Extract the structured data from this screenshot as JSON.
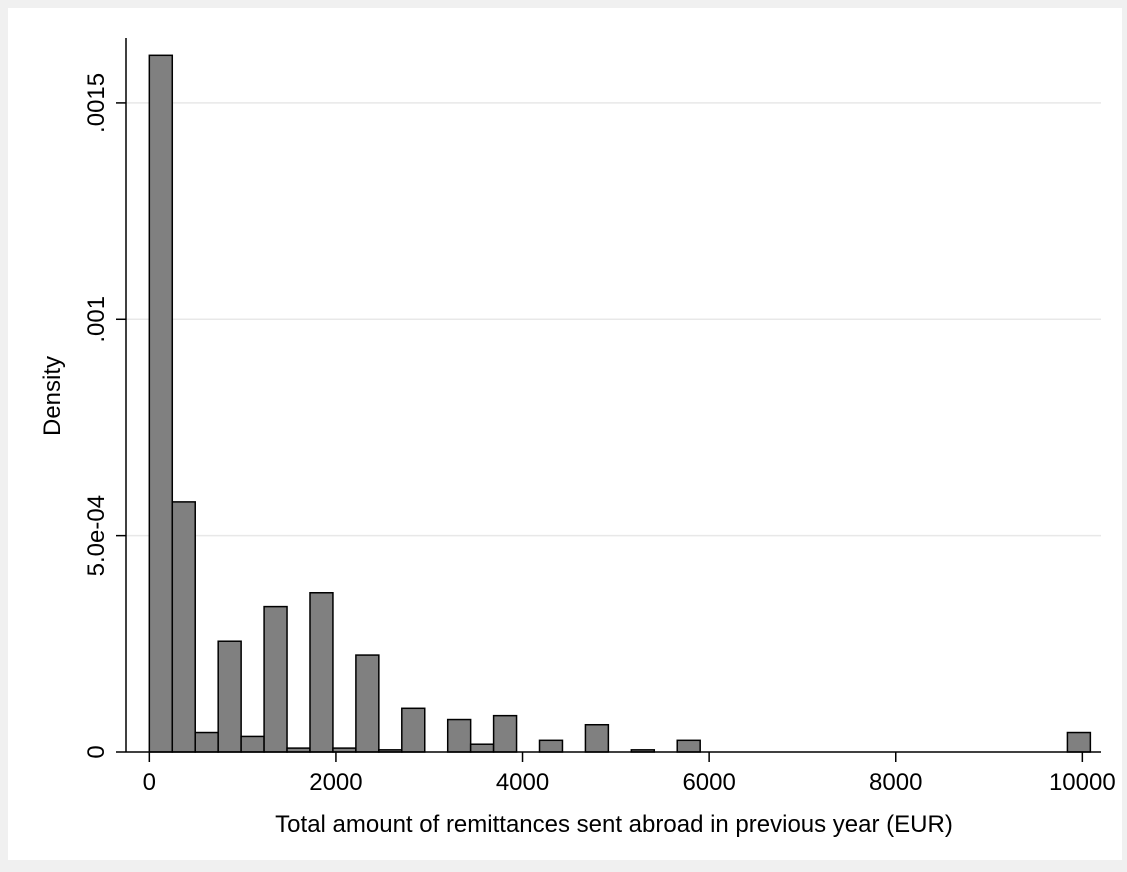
{
  "chart_data": {
    "type": "bar",
    "subtype": "histogram",
    "xlabel": "Total amount of remittances sent abroad in previous year (EUR)",
    "ylabel": "Density",
    "xlim": [
      -250,
      10200
    ],
    "ylim": [
      0,
      0.00165
    ],
    "xticks": [
      {
        "value": 0,
        "label": "0"
      },
      {
        "value": 2000,
        "label": "2000"
      },
      {
        "value": 4000,
        "label": "4000"
      },
      {
        "value": 6000,
        "label": "6000"
      },
      {
        "value": 8000,
        "label": "8000"
      },
      {
        "value": 10000,
        "label": "10000"
      }
    ],
    "yticks": [
      {
        "value": 0,
        "label": "0"
      },
      {
        "value": 0.0005,
        "label": "5.0e-04"
      },
      {
        "value": 0.001,
        "label": ".001"
      },
      {
        "value": 0.0015,
        "label": ".0015"
      }
    ],
    "grid": "horizontal",
    "bin_width": 246,
    "bar_color": "#808080",
    "bar_edge_color": "#000000",
    "bins": [
      {
        "x": 0,
        "density": 0.00161
      },
      {
        "x": 246,
        "density": 0.000578
      },
      {
        "x": 492,
        "density": 4.5e-05
      },
      {
        "x": 738,
        "density": 0.000256
      },
      {
        "x": 984,
        "density": 3.6e-05
      },
      {
        "x": 1230,
        "density": 0.000336
      },
      {
        "x": 1476,
        "density": 9e-06
      },
      {
        "x": 1722,
        "density": 0.000368
      },
      {
        "x": 1968,
        "density": 9e-06
      },
      {
        "x": 2214,
        "density": 0.000224
      },
      {
        "x": 2460,
        "density": 5e-06
      },
      {
        "x": 2706,
        "density": 0.000101
      },
      {
        "x": 3198,
        "density": 7.5e-05
      },
      {
        "x": 3444,
        "density": 1.8e-05
      },
      {
        "x": 3690,
        "density": 8.4e-05
      },
      {
        "x": 4182,
        "density": 2.7e-05
      },
      {
        "x": 4674,
        "density": 6.3e-05
      },
      {
        "x": 5166,
        "density": 5e-06
      },
      {
        "x": 5658,
        "density": 2.7e-05
      },
      {
        "x": 9840,
        "density": 4.5e-05
      }
    ]
  }
}
